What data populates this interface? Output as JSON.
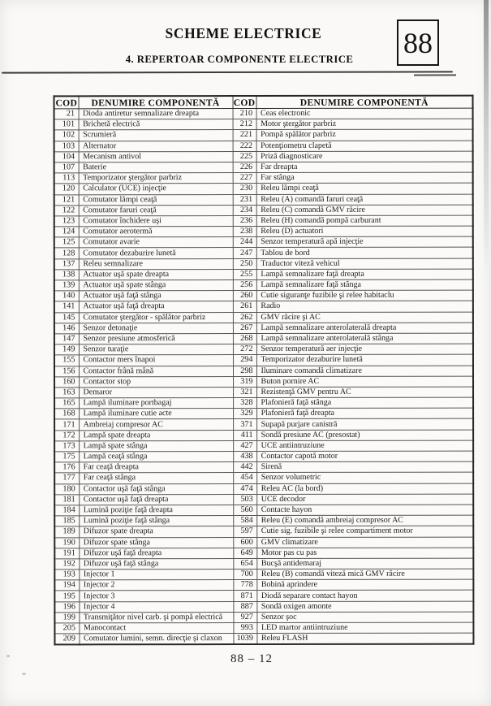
{
  "page": {
    "title": "SCHEME ELECTRICE",
    "subtitle": "4. REPERTOAR COMPONENTE ELECTRICE",
    "page_box_number": "88",
    "footer_page_number": "88 – 12"
  },
  "table": {
    "headers": [
      "COD",
      "DENUMIRE COMPONENTĂ",
      "COD",
      "DENUMIRE COMPONENTĂ"
    ],
    "rows": [
      [
        "21",
        "Dioda antiretur semnalizare dreapta",
        "210",
        "Ceas electronic"
      ],
      [
        "101",
        "Brichetă electrică",
        "212",
        "Motor ştergător parbriz"
      ],
      [
        "102",
        "Scrumieră",
        "221",
        "Pompă  spălător parbriz"
      ],
      [
        "103",
        "Alternator",
        "222",
        "Potenţiometru clapetă"
      ],
      [
        "104",
        "Mecanism antivol",
        "225",
        "Priză diagnosticare"
      ],
      [
        "107",
        "Baterie",
        "226",
        "Far dreapta"
      ],
      [
        "113",
        "Temporizator ştergător parbriz",
        "227",
        "Far stânga"
      ],
      [
        "120",
        "Calculator (UCE) injecţie",
        "230",
        "Releu lămpi ceaţă"
      ],
      [
        "121",
        "Comutator lămpi ceaţă",
        "231",
        "Releu  (A)  comandă faruri ceaţă"
      ],
      [
        "122",
        "Comutator faruri ceaţă",
        "234",
        "Releu (C) comandă  GMV răcire"
      ],
      [
        "123",
        "Comutator închidere uşi",
        "236",
        "Releu  (H)  comandă pompă carburant"
      ],
      [
        "124",
        "Comutator aerotermă",
        "238",
        "Releu  (D)  actuatori"
      ],
      [
        "125",
        "Comutator avarie",
        "244",
        "Senzor temperatură apă injecţie"
      ],
      [
        "128",
        "Comutator dezaburire lunetă",
        "247",
        "Tablou de bord"
      ],
      [
        "137",
        "Releu semnalizare",
        "250",
        "Traductor viteză vehicul"
      ],
      [
        "138",
        "Actuator  uşă spate dreapta",
        "255",
        "Lampă semnalizare faţă dreapta"
      ],
      [
        "139",
        "Actuator  uşă spate stânga",
        "256",
        "Lampă semnalizare faţă stânga"
      ],
      [
        "140",
        "Actuator  uşă faţă stânga",
        "260",
        "Cutie siguranţe fuzibile şi relee habitaclu"
      ],
      [
        "141",
        "Actuator  uşă faţă dreapta",
        "261",
        "Radio"
      ],
      [
        "145",
        "Comutator ştergător - spălător parbriz",
        "262",
        "GMV răcire şi AC"
      ],
      [
        "146",
        "Senzor detonaţie",
        "267",
        "Lampă semnalizare anterolaterală dreapta"
      ],
      [
        "147",
        "Senzor presiune atmosferică",
        "268",
        "Lampă semnalizare anterolaterală stânga"
      ],
      [
        "149",
        "Senzor turaţie",
        "272",
        "Senzor temperatură aer injecţie"
      ],
      [
        "155",
        "Contactor mers înapoi",
        "294",
        "Temporizator dezaburire lunetă"
      ],
      [
        "156",
        "Contactor frână mână",
        "298",
        "Iluminare comandă climatizare"
      ],
      [
        "160",
        "Contactor stop",
        "319",
        "Buton pornire AC"
      ],
      [
        "163",
        "Demaror",
        "321",
        "Rezistenţă GMV pentru AC"
      ],
      [
        "165",
        "Lampă iluminare portbagaj",
        "328",
        "Plafonieră faţă stânga"
      ],
      [
        "168",
        "Lampă iluminare cutie acte",
        "329",
        "Plafonieră faţă dreapta"
      ],
      [
        "171",
        "Ambreiaj compresor AC",
        "371",
        "Supapă  purjare  canistră"
      ],
      [
        "172",
        "Lampă spate dreapta",
        "411",
        "Sondă presiune AC (presostat)"
      ],
      [
        "173",
        "Lampă spate stânga",
        "427",
        "UCE antiintruziune"
      ],
      [
        "175",
        "Lampă ceaţă stânga",
        "438",
        "Contactor capotă motor"
      ],
      [
        "176",
        "Far ceaţă dreapta",
        "442",
        "Sirenă"
      ],
      [
        "177",
        "Far ceaţă stânga",
        "454",
        "Senzor volumetric"
      ],
      [
        "180",
        "Contactor uşă faţă stânga",
        "474",
        "Releu AC (la bord)"
      ],
      [
        "181",
        "Contactor uşă faţă dreapta",
        "503",
        "UCE decodor"
      ],
      [
        "184",
        "Lumină poziţie faţă dreapta",
        "560",
        "Contacte hayon"
      ],
      [
        "185",
        "Lumină poziţie faţă stânga",
        "584",
        "Releu  (E)  comandă ambreiaj compresor AC"
      ],
      [
        "189",
        "Difuzor spate dreapta",
        "597",
        "Cutie sig. fuzibile şi relee compartiment motor"
      ],
      [
        "190",
        "Difuzor spate stânga",
        "600",
        "GMV climatizare"
      ],
      [
        "191",
        "Difuzor uşă faţă dreapta",
        "649",
        "Motor  pas cu pas"
      ],
      [
        "192",
        "Difuzor uşă faţă stânga",
        "654",
        "Bucşă antidemaraj"
      ],
      [
        "193",
        "Injector 1",
        "700",
        "Releu (B) comandă viteză mică GMV răcire"
      ],
      [
        "194",
        "Injector 2",
        "778",
        "Bobină aprindere"
      ],
      [
        "195",
        "Injector 3",
        "871",
        "Diodă separare contact  hayon"
      ],
      [
        "196",
        "Injector 4",
        "887",
        "Sondă oxigen amonte"
      ],
      [
        "199",
        "Transmiţător nivel carb. şi pompă electrică",
        "927",
        "Senzor şoc"
      ],
      [
        "205",
        "Manocontact",
        "993",
        "LED martor antiintruziune"
      ],
      [
        "209",
        "Comutator lumini, semn. direcţie şi claxon",
        "1039",
        "Releu  FLASH"
      ]
    ]
  }
}
